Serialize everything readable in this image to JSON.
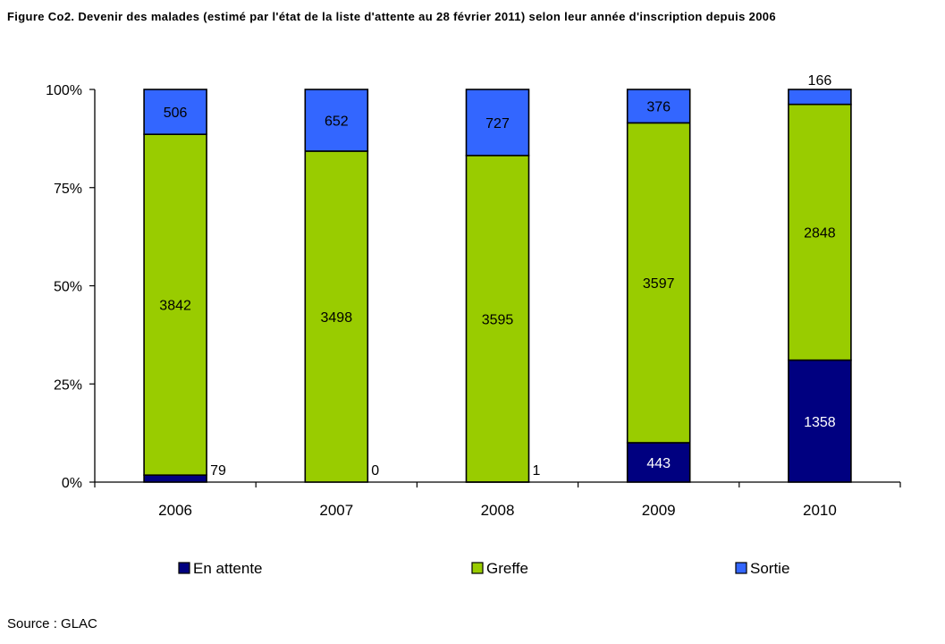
{
  "figure": {
    "title": "Figure Co2. Devenir des malades (estimé par l'état de la liste d'attente au 28 février 2011) selon leur année d'inscription depuis 2006",
    "source": "Source : GLAC"
  },
  "colors": {
    "en_attente": "#000080",
    "greffe": "#99cc00",
    "sortie": "#3366ff"
  },
  "chart_data": {
    "type": "bar",
    "stacking": "percent",
    "categories": [
      "2006",
      "2007",
      "2008",
      "2009",
      "2010"
    ],
    "series": [
      {
        "name": "En attente",
        "values": [
          79,
          0,
          1,
          443,
          1358
        ]
      },
      {
        "name": "Greffe",
        "values": [
          3842,
          3498,
          3595,
          3597,
          2848
        ]
      },
      {
        "name": "Sortie",
        "values": [
          506,
          652,
          727,
          376,
          166
        ]
      }
    ],
    "y_tick_labels": [
      "0%",
      "25%",
      "50%",
      "75%",
      "100%"
    ],
    "ylim": [
      0,
      100
    ],
    "grid": false,
    "legend_position": "bottom"
  }
}
